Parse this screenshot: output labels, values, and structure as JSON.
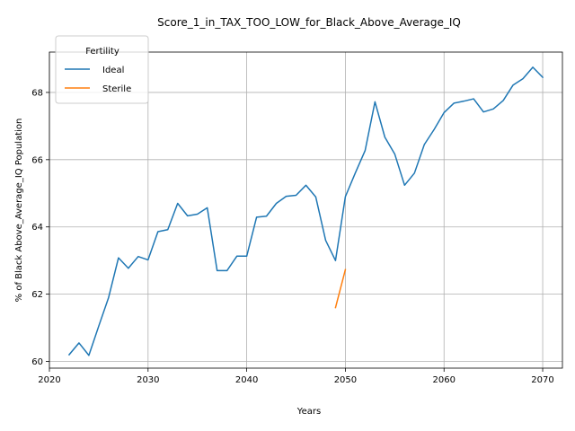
{
  "chart_data": {
    "type": "line",
    "title": "Score_1_in_TAX_TOO_LOW_for_Black_Above_Average_IQ",
    "xlabel": "Years",
    "ylabel": "% of Black Above_Average_IQ Population",
    "xlim": [
      2020,
      2072
    ],
    "ylim": [
      59.8,
      69.2
    ],
    "xticks": [
      2020,
      2030,
      2040,
      2050,
      2060,
      2070
    ],
    "yticks": [
      60,
      62,
      64,
      66,
      68
    ],
    "grid": true,
    "legend": {
      "title": "Fertility",
      "position": "top-left"
    },
    "series": [
      {
        "name": "Ideal",
        "color": "#1f77b4",
        "x": [
          2022,
          2023,
          2024,
          2025,
          2026,
          2027,
          2028,
          2029,
          2030,
          2031,
          2032,
          2033,
          2034,
          2035,
          2036,
          2037,
          2038,
          2039,
          2040,
          2041,
          2042,
          2043,
          2044,
          2045,
          2046,
          2047,
          2048,
          2049,
          2050,
          2051,
          2052,
          2053,
          2054,
          2055,
          2056,
          2057,
          2058,
          2059,
          2060,
          2061,
          2062,
          2063,
          2064,
          2065,
          2066,
          2067,
          2068,
          2069,
          2070
        ],
        "y": [
          60.2,
          60.55,
          60.18,
          61.05,
          61.9,
          63.08,
          62.77,
          63.12,
          63.02,
          63.86,
          63.92,
          64.7,
          64.33,
          64.38,
          64.57,
          62.7,
          62.7,
          63.13,
          63.13,
          64.29,
          64.32,
          64.7,
          64.91,
          64.94,
          65.24,
          64.89,
          63.6,
          63.0,
          64.9,
          65.6,
          66.27,
          67.72,
          66.67,
          66.17,
          65.24,
          65.6,
          66.45,
          66.9,
          67.4,
          67.68,
          67.74,
          67.81,
          67.42,
          67.51,
          67.76,
          68.22,
          68.41,
          68.75,
          68.45
        ]
      },
      {
        "name": "Sterile",
        "color": "#ff7f0e",
        "x": [
          2049,
          2050
        ],
        "y": [
          61.6,
          62.73
        ]
      }
    ]
  }
}
